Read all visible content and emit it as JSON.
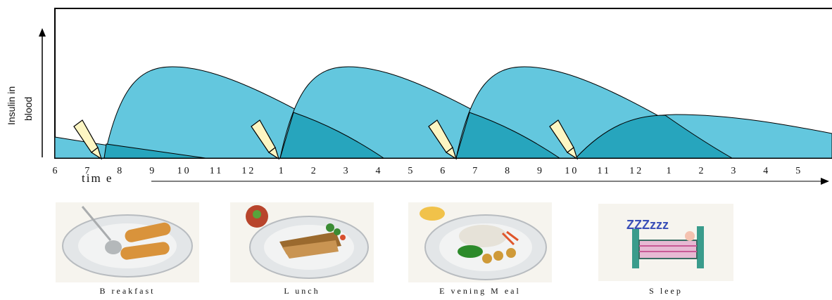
{
  "y_axis_label": [
    "Insulin in",
    "blood"
  ],
  "x_axis_label": "tim e",
  "time_ticks": [
    "6",
    "7",
    "8",
    "9",
    "10",
    "11",
    "12",
    "1",
    "2",
    "3",
    "4",
    "5",
    "6",
    "7",
    "8",
    "9",
    "10",
    "11",
    "12",
    "1",
    "2",
    "3",
    "4",
    "5"
  ],
  "colors": {
    "curve_fill": "#63c7de",
    "overlap_fill": "#27a5bd",
    "needle_fill": "#fdf6c3",
    "line": "#000000"
  },
  "icons": [
    "syringe-icon",
    "breakfast-plate-icon",
    "lunch-plate-icon",
    "evening-meal-plate-icon",
    "sleep-bed-icon"
  ],
  "meals": [
    {
      "caption": "B reakfast"
    },
    {
      "caption": "L unch"
    },
    {
      "caption": "E vening M eal"
    },
    {
      "caption": "S leep"
    }
  ]
}
